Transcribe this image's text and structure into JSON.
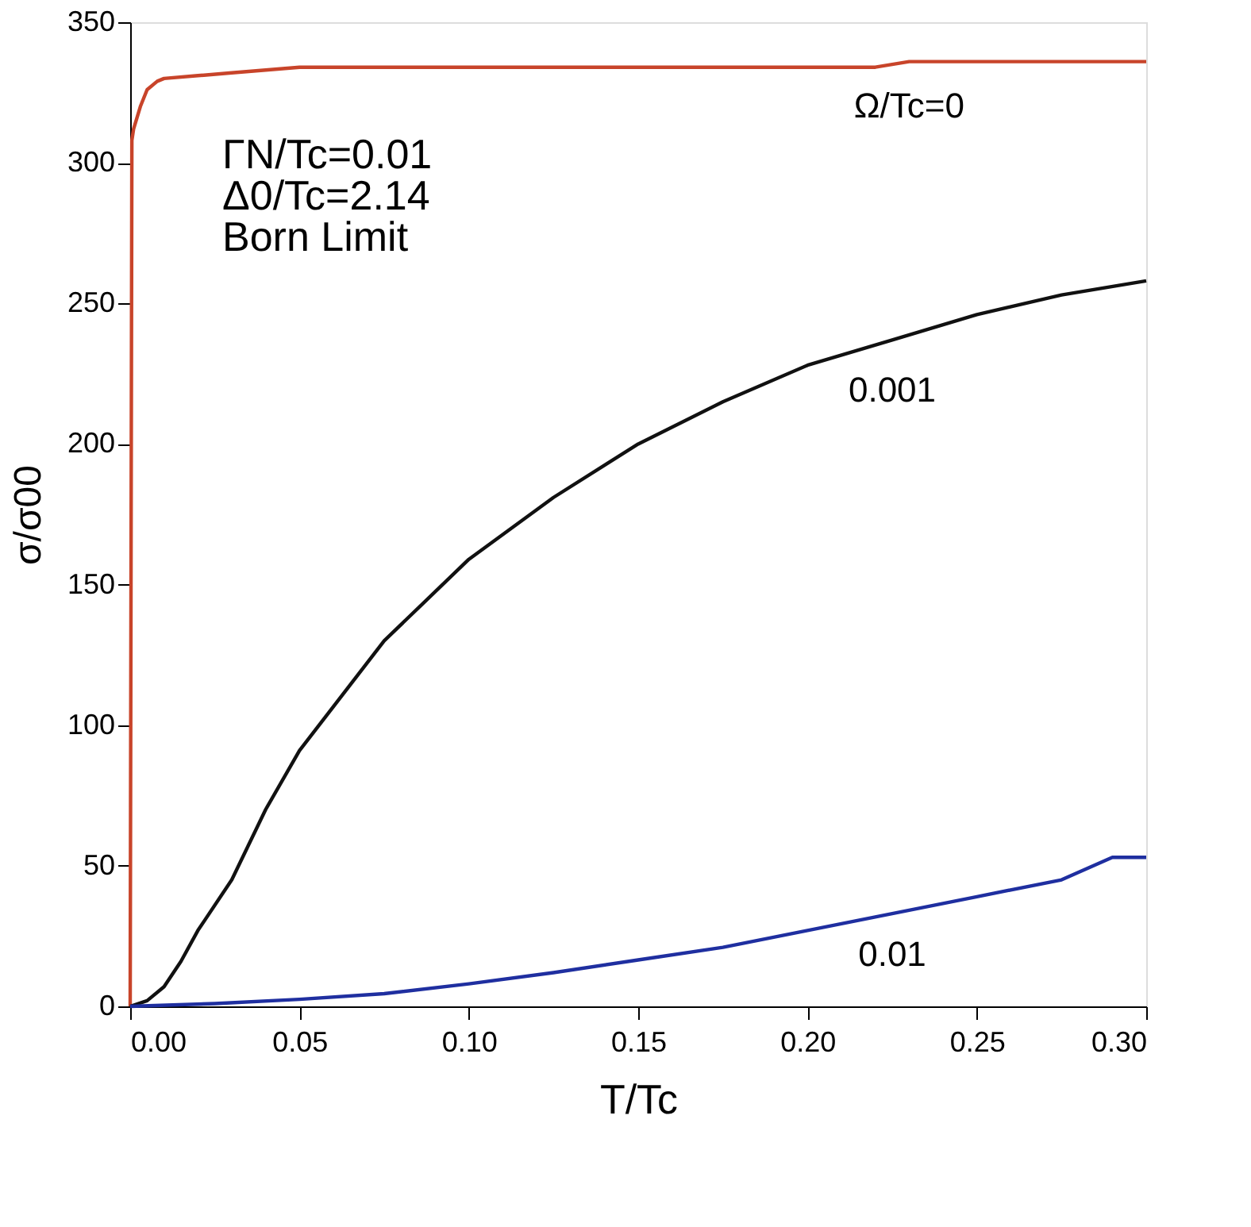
{
  "chart_data": {
    "type": "line",
    "xlabel": "T/Tc",
    "ylabel": "σ/σ00",
    "xlim": [
      0,
      0.3
    ],
    "xticks": [
      {
        "value": 0,
        "label": "0.00"
      },
      {
        "value": 0.05,
        "label": "0.05"
      },
      {
        "value": 0.1,
        "label": "0.10"
      },
      {
        "value": 0.15,
        "label": "0.15"
      },
      {
        "value": 0.2,
        "label": "0.20"
      },
      {
        "value": 0.25,
        "label": "0.25"
      },
      {
        "value": 0.3,
        "label": "0.30"
      }
    ],
    "ylim": [
      0,
      350
    ],
    "yticks": [
      0,
      50,
      100,
      150,
      200,
      250,
      300,
      350
    ],
    "grid": false,
    "marker": "none",
    "line_style": "solid",
    "series": [
      {
        "name": "Ω/Tc=0",
        "color": "#c8442a",
        "x": [
          0,
          0.0005,
          0.001,
          0.003,
          0.005,
          0.008,
          0.01,
          0.02,
          0.03,
          0.05,
          0.1,
          0.15,
          0.22,
          0.23,
          0.3
        ],
        "values": [
          0,
          308,
          312,
          320,
          326,
          329,
          330,
          331,
          332,
          334,
          334,
          334,
          334,
          336,
          336
        ]
      },
      {
        "name": "0.001",
        "color": "#111111",
        "x": [
          0,
          0.005,
          0.01,
          0.015,
          0.02,
          0.03,
          0.04,
          0.05,
          0.075,
          0.1,
          0.125,
          0.15,
          0.175,
          0.2,
          0.225,
          0.25,
          0.275,
          0.3
        ],
        "values": [
          0,
          2,
          7,
          16,
          27,
          45,
          70,
          91,
          130,
          159,
          181,
          200,
          215,
          228,
          237,
          246,
          253,
          258
        ]
      },
      {
        "name": "0.01",
        "color": "#1f2fa0",
        "x": [
          0,
          0.025,
          0.05,
          0.075,
          0.1,
          0.125,
          0.15,
          0.175,
          0.2,
          0.225,
          0.25,
          0.275,
          0.29,
          0.3
        ],
        "values": [
          0,
          1,
          2.5,
          4.5,
          8,
          12,
          16.5,
          21,
          27,
          33,
          39,
          45,
          53,
          53
        ]
      }
    ],
    "annotations": [
      "ΓN/Tc=0.01",
      "Δ0/Tc=2.14",
      "Born Limit"
    ]
  }
}
